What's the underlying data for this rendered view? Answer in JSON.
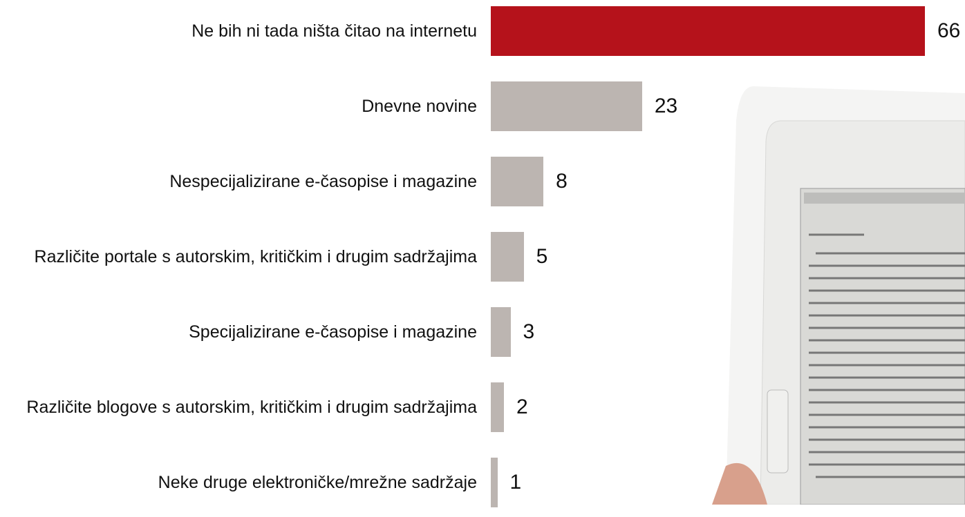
{
  "chart_data": {
    "type": "bar",
    "orientation": "horizontal",
    "categories": [
      "Ne bih ni tada ništa čitao na internetu",
      "Dnevne novine",
      "Nespecijalizirane e-časopise i magazine",
      "Različite portale s autorskim, kritičkim i drugim sadržajima",
      "Specijalizirane e-časopise i magazine",
      "Različite blogove s autorskim, kritičkim i drugim sadržajima",
      "Neke druge elektroničke/mrežne sadržaje"
    ],
    "values": [
      66,
      23,
      8,
      5,
      3,
      2,
      1
    ],
    "colors": [
      "#b5121b",
      "#bcb5b1",
      "#bcb5b1",
      "#bcb5b1",
      "#bcb5b1",
      "#bcb5b1",
      "#bcb5b1"
    ]
  }
}
